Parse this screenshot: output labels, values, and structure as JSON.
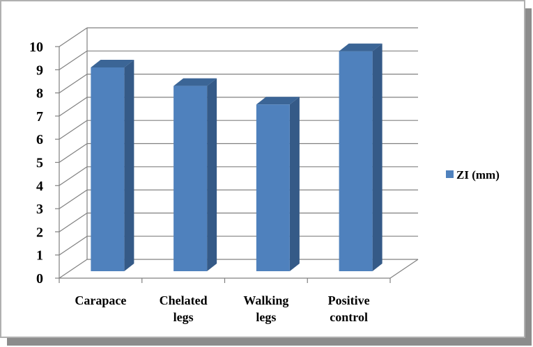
{
  "chart_data": {
    "type": "bar",
    "style": "3d-column",
    "categories": [
      "Carapace",
      "Chelated legs",
      "Walking legs",
      "Positive control"
    ],
    "category_lines": [
      [
        "Carapace"
      ],
      [
        "Chelated",
        "legs"
      ],
      [
        "Walking",
        "legs"
      ],
      [
        "Positive",
        "control"
      ]
    ],
    "series": [
      {
        "name": "ZI (mm)",
        "values": [
          9.1,
          8.3,
          7.5,
          9.8
        ]
      }
    ],
    "ylim": [
      0,
      10
    ],
    "yticks": [
      "0",
      "1",
      "2",
      "3",
      "4",
      "5",
      "6",
      "7",
      "8",
      "9",
      "10"
    ],
    "grid": true,
    "legend_position": "right",
    "colors": {
      "bar_front": "#4f81bd",
      "bar_side": "#355a87",
      "bar_top": "#3b6596",
      "grid": "#808080",
      "border": "#a6a6a6",
      "shadow": "#7f7f7f"
    }
  }
}
